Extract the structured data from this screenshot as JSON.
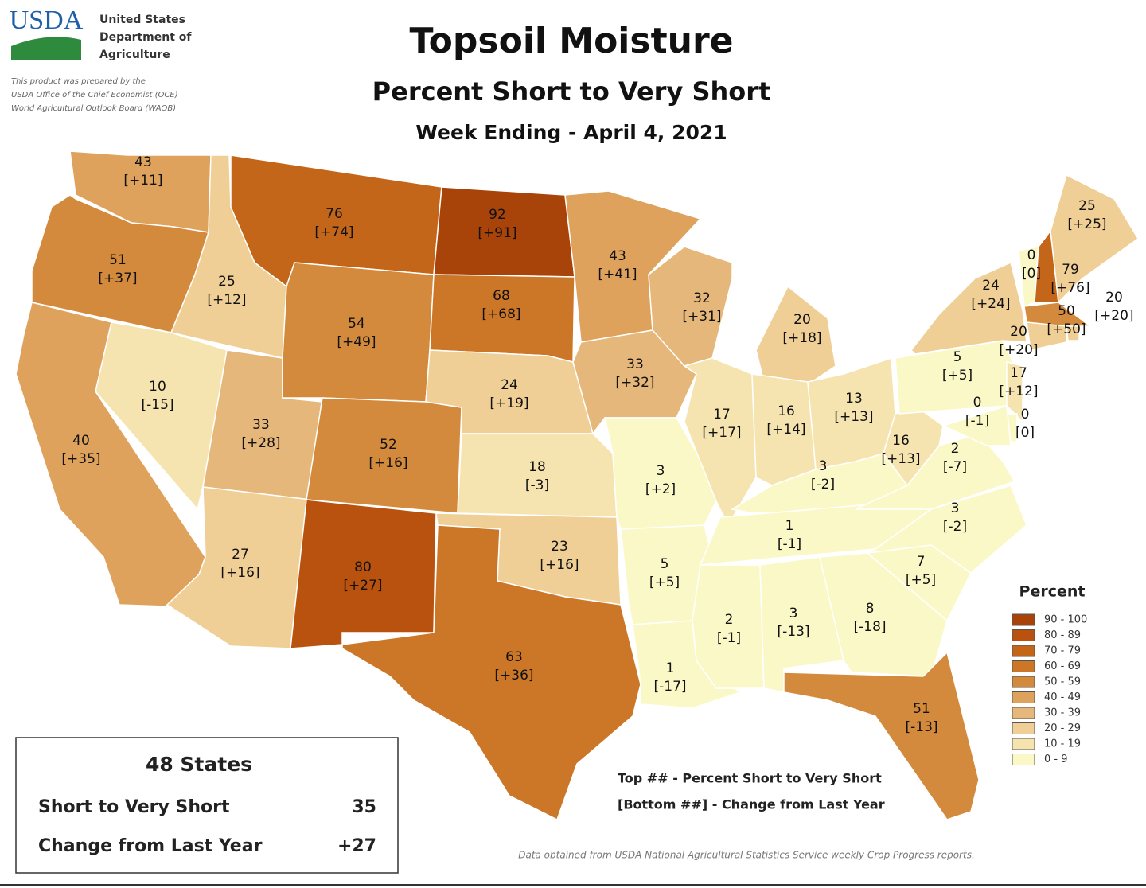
{
  "header": {
    "logo": "USDA",
    "agency": [
      "United States",
      "Department of",
      "Agriculture"
    ],
    "disclaimer": [
      "This product was prepared by the",
      "USDA Office of the Chief Economist (OCE)",
      "World Agricultural Outlook Board (WAOB)"
    ],
    "title": "Topsoil Moisture",
    "subtitle": "Percent Short to Very Short",
    "week": "Week Ending - April 4, 2021"
  },
  "states": [
    {
      "value": 43,
      "change": "[+11]",
      "color": "#dea25c"
    },
    {
      "value": 51,
      "change": "[+37]",
      "color": "#d48a3c"
    },
    {
      "value": 40,
      "change": "[+35]",
      "color": "#dea25c"
    },
    {
      "value": 25,
      "change": "[+12]",
      "color": "#efcf95"
    },
    {
      "value": 10,
      "change": "[-15]",
      "color": "#f6e4b0"
    },
    {
      "value": 33,
      "change": "[+28]",
      "color": "#e6b77a"
    },
    {
      "value": 27,
      "change": "[+16]",
      "color": "#efcf95"
    },
    {
      "value": 76,
      "change": "[+74]",
      "color": "#c4661a"
    },
    {
      "value": 54,
      "change": "[+49]",
      "color": "#d48a3c"
    },
    {
      "value": 52,
      "change": "[+16]",
      "color": "#d48a3c"
    },
    {
      "value": 80,
      "change": "[+27]",
      "color": "#b8520e"
    },
    {
      "value": 92,
      "change": "[+91]",
      "color": "#a8430a"
    },
    {
      "value": 68,
      "change": "[+68]",
      "color": "#cc7628"
    },
    {
      "value": 24,
      "change": "[+19]",
      "color": "#efcf95"
    },
    {
      "value": 18,
      "change": "[-3]",
      "color": "#f6e4b0"
    },
    {
      "value": 23,
      "change": "[+16]",
      "color": "#efcf95"
    },
    {
      "value": 63,
      "change": "[+36]",
      "color": "#cc7628"
    },
    {
      "value": 43,
      "change": "[+41]",
      "color": "#dea25c"
    },
    {
      "value": 33,
      "change": "[+32]",
      "color": "#e6b77a"
    },
    {
      "value": 3,
      "change": "[+2]",
      "color": "#fbf8c8"
    },
    {
      "value": 5,
      "change": "[+5]",
      "color": "#fbf8c8"
    },
    {
      "value": 1,
      "change": "[-17]",
      "color": "#fbf8c8"
    },
    {
      "value": 32,
      "change": "[+31]",
      "color": "#e6b77a"
    },
    {
      "value": 17,
      "change": "[+17]",
      "color": "#f6e4b0"
    },
    {
      "value": 20,
      "change": "[+18]",
      "color": "#efcf95"
    },
    {
      "value": 16,
      "change": "[+14]",
      "color": "#f6e4b0"
    },
    {
      "value": 13,
      "change": "[+13]",
      "color": "#f6e4b0"
    },
    {
      "value": 3,
      "change": "[-2]",
      "color": "#fbf8c8"
    },
    {
      "value": 1,
      "change": "[-1]",
      "color": "#fbf8c8"
    },
    {
      "value": 2,
      "change": "[-1]",
      "color": "#fbf8c8"
    },
    {
      "value": 3,
      "change": "[-13]",
      "color": "#fbf8c8"
    },
    {
      "value": 8,
      "change": "[-18]",
      "color": "#fbf8c8"
    },
    {
      "value": 51,
      "change": "[-13]",
      "color": "#d48a3c"
    },
    {
      "value": 7,
      "change": "[+5]",
      "color": "#fbf8c8"
    },
    {
      "value": 3,
      "change": "[-2]",
      "color": "#fbf8c8"
    },
    {
      "value": 2,
      "change": "[-7]",
      "color": "#fbf8c8"
    },
    {
      "value": 16,
      "change": "[+13]",
      "color": "#f6e4b0"
    },
    {
      "value": 5,
      "change": "[+5]",
      "color": "#fbf8c8"
    },
    {
      "value": 24,
      "change": "[+24]",
      "color": "#efcf95"
    },
    {
      "value": 0,
      "change": "[0]",
      "color": "#fbf8c8"
    },
    {
      "value": 79,
      "change": "[+76]",
      "color": "#c4661a"
    },
    {
      "value": 25,
      "change": "[+25]",
      "color": "#efcf95"
    },
    {
      "value": 50,
      "change": "[+50]",
      "color": "#d48a3c"
    },
    {
      "value": 20,
      "change": "[+20]",
      "color": "#efcf95"
    },
    {
      "value": 20,
      "change": "[+20]",
      "color": "#efcf95"
    },
    {
      "value": 17,
      "change": "[+12]",
      "color": "#f6e4b0"
    },
    {
      "value": 0,
      "change": "[0]",
      "color": "#fbf8c8"
    },
    {
      "value": 0,
      "change": "[-1]",
      "color": "#fbf8c8"
    }
  ],
  "legend": {
    "title": "Percent",
    "items": [
      {
        "label": "90 - 100",
        "color": "#a8430a"
      },
      {
        "label": "80 - 89",
        "color": "#b8520e"
      },
      {
        "label": "70 - 79",
        "color": "#c4661a"
      },
      {
        "label": "60 - 69",
        "color": "#cc7628"
      },
      {
        "label": "50 - 59",
        "color": "#d48a3c"
      },
      {
        "label": "40 - 49",
        "color": "#dea25c"
      },
      {
        "label": "30 - 39",
        "color": "#e6b77a"
      },
      {
        "label": "20 - 29",
        "color": "#efcf95"
      },
      {
        "label": "10 - 19",
        "color": "#f6e4b0"
      },
      {
        "label": "0 - 9",
        "color": "#fbf8c8"
      }
    ]
  },
  "summary": {
    "title": "48 States",
    "rows": [
      {
        "label": "Short to Very Short",
        "value": 35
      },
      {
        "label": "Change from Last Year",
        "value": "+27"
      }
    ]
  },
  "notes": [
    "Top ## - Percent Short to Very Short",
    "[Bottom ##] - Change from Last Year"
  ],
  "source": "Data obtained from USDA National Agricultural Statistics Service weekly Crop Progress reports."
}
